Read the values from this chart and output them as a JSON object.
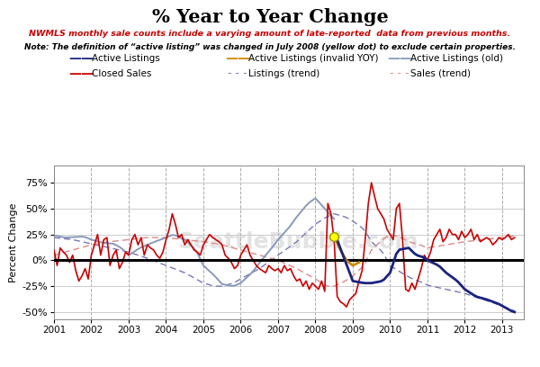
{
  "title": "% Year to Year Change",
  "subtitle1": "NWMLS monthly sale counts include a varying amount of late-reported  data from previous months.",
  "subtitle2": "Note: The definition of “active listing” was changed in July 2008 (yellow dot) to exclude certain properties.",
  "ylabel": "Percent Change",
  "xlim": [
    2001.0,
    2013.58
  ],
  "ylim": [
    -0.57,
    0.92
  ],
  "yticks": [
    -0.5,
    -0.25,
    0.0,
    0.25,
    0.5,
    0.75
  ],
  "ytick_labels": [
    "-50%",
    "-25%",
    "0%",
    "25%",
    "50%",
    "75%"
  ],
  "background_color": "#ffffff",
  "watermark": "SeattleBubble.com",
  "active_listings_old_color": "#8899bb",
  "active_listings_color": "#1a237e",
  "active_listings_invalid_color": "#cc8800",
  "closed_sales_color": "#cc0000",
  "listings_trend_color": "#7777bb",
  "sales_trend_color": "#dd8888",
  "zero_line_color": "#000000",
  "yellow_dot_color": "#ffff00",
  "yellow_dot_edge_color": "#999900",
  "vline_color": "#aaaaaa",
  "grid_color": "#cccccc"
}
